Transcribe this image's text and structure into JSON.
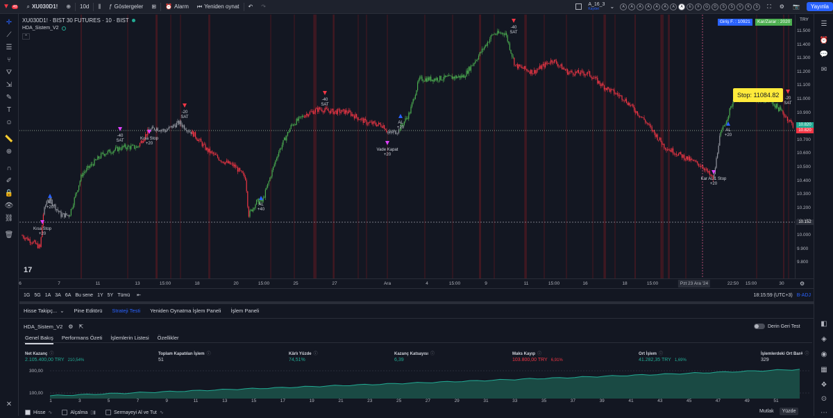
{
  "topbar": {
    "symbol": "XU030D1!",
    "interval": "10d",
    "indicators": "Göstergeler",
    "alarm": "Alarm",
    "replay": "Yeniden oynat",
    "layout_name": "A_16_3",
    "layout_status": "Kaydet",
    "publish": "Yayınla",
    "letter_buttons": [
      "A",
      "A",
      "A",
      "A",
      "A",
      "A",
      "A",
      "A",
      "E",
      "F",
      "G",
      "D",
      "S",
      "S",
      "V",
      "K",
      "S"
    ],
    "notif_count": "49"
  },
  "chart_header": {
    "title": "XU030D1! · BIST 30 FUTURES · 10 · BIST",
    "indicator": "HDA_Sistem_V2",
    "entry_box": "Giriş F. : 10921",
    "pnl_box": "Kar/Zarar : 2020",
    "currency": "TRY",
    "stop_label": "Stop: 11084.82",
    "logo": "17"
  },
  "yaxis": {
    "ticks": [
      "11.500",
      "11.400",
      "11.300",
      "11.200",
      "11.100",
      "11.000",
      "10.900",
      "10.800",
      "10.700",
      "10.600",
      "10.500",
      "10.400",
      "10.300",
      "10.200",
      "10.100",
      "10.000",
      "9.900",
      "9.800"
    ],
    "price_tags": [
      {
        "text": "10.820",
        "color": "#22ab94"
      },
      {
        "text": "10.820",
        "color": "#f23645"
      },
      {
        "text": "10.152",
        "color": "#2a2e39"
      }
    ]
  },
  "signals": [
    {
      "text": "AL",
      "sub": "+20"
    },
    {
      "text": "Kısa Stop",
      "sub": "+20"
    },
    {
      "text": "-40",
      "sub": "SAT"
    },
    {
      "text": "Kısa Stop",
      "sub": "+20"
    },
    {
      "text": "-20",
      "sub": "SAT"
    },
    {
      "text": "AL",
      "sub": "+40"
    },
    {
      "text": "-40",
      "sub": "SAT"
    },
    {
      "text": "Vade Kapat",
      "sub": "+20"
    },
    {
      "text": "AL",
      "sub": "+20"
    },
    {
      "text": "-40",
      "sub": "SAT"
    },
    {
      "text": "Kar AL 1 Stop",
      "sub": "+20"
    },
    {
      "text": "AL",
      "sub": "+20"
    },
    {
      "text": "-20",
      "sub": "SAT"
    }
  ],
  "xaxis": {
    "labels": [
      "6",
      "7",
      "11",
      "13",
      "15:00",
      "18",
      "20",
      "15:00",
      "25",
      "27",
      "Ara",
      "4",
      "15:00",
      "9",
      "11",
      "15:00",
      "16",
      "18",
      "15:00",
      "22:50",
      "15:00",
      "30"
    ],
    "crosshair": "Pzt 23 Ara '24"
  },
  "timeframes": [
    "1G",
    "5G",
    "1A",
    "3A",
    "6A",
    "Bu sene",
    "1Y",
    "5Y",
    "Tümü"
  ],
  "clock": "18:15:59 (UTC+3)",
  "badj": "B-ADJ",
  "panel_tabs": [
    "Hisse Takipç...",
    "Pine Editörü",
    "Strateji Testi",
    "Yeniden Oynatma İşlem Paneli",
    "İşlem Paneli"
  ],
  "strategy": {
    "name": "HDA_Sistem_V2",
    "deep_test": "Derin Geri Test",
    "subtabs": [
      "Genel Bakış",
      "Performans Özeti",
      "İşlemlerin Listesi",
      "Özellikler"
    ],
    "stats": [
      {
        "label": "Net Kazanç",
        "value": "2.105.400,00 TRY",
        "pct": "210,54%",
        "tone": "green"
      },
      {
        "label": "Toplam Kapatılan İşlem",
        "value": "51",
        "pct": "",
        "tone": "plain"
      },
      {
        "label": "Kârlı Yüzde",
        "value": "74,51%",
        "pct": "",
        "tone": "green"
      },
      {
        "label": "Kazanç Katsayısı",
        "value": "6,39",
        "pct": "",
        "tone": "green"
      },
      {
        "label": "Maks Kayıp",
        "value": "103.800,00 TRY",
        "pct": "6,91%",
        "tone": "red"
      },
      {
        "label": "Ort İşlem",
        "value": "41.282,35 TRY",
        "pct": "1,69%",
        "tone": "green"
      },
      {
        "label": "İşlemlerdeki Ort Bar#",
        "value": "329",
        "pct": "",
        "tone": "plain"
      }
    ],
    "equity_y": [
      "300,00",
      "100,00"
    ],
    "equity_x": [
      "1",
      "3",
      "5",
      "7",
      "9",
      "11",
      "13",
      "15",
      "17",
      "19",
      "21",
      "23",
      "25",
      "27",
      "29",
      "31",
      "33",
      "35",
      "37",
      "39",
      "41",
      "43",
      "45",
      "47",
      "49",
      "51"
    ],
    "legend": [
      {
        "label": "Hisse",
        "checked": true
      },
      {
        "label": "Alçalma",
        "checked": false
      },
      {
        "label": "Sermayeyi Al ve Tut",
        "checked": false
      }
    ],
    "mode_abs": "Mutlak",
    "mode_pct": "Yüzde"
  },
  "colors": {
    "up": "#4caf50",
    "down": "#f23645",
    "neutral": "#9598a1",
    "accent": "#2962ff",
    "stop": "#ffeb3b"
  }
}
